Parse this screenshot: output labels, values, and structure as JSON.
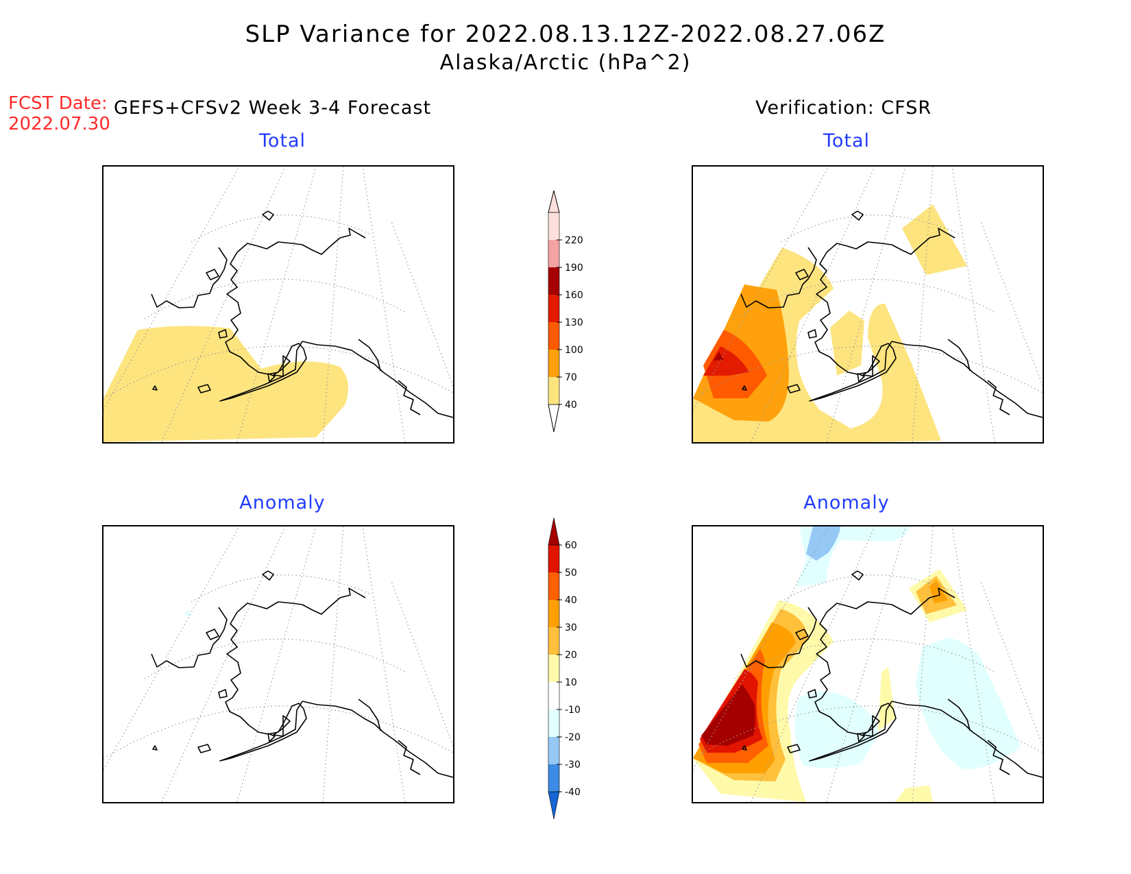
{
  "title": {
    "line1": "SLP Variance for 2022.08.13.12Z-2022.08.27.06Z",
    "line2": "Alaska/Arctic (hPa^2)"
  },
  "fcst_date": {
    "label": "FCST Date:",
    "value": "2022.07.30"
  },
  "left_header": "GEFS+CFSv2 Week 3-4 Forecast",
  "right_header": "Verification: CFSR",
  "panels": {
    "forecast_total": {
      "subtitle": "Total"
    },
    "verification_total": {
      "subtitle": "Total"
    },
    "forecast_anomaly": {
      "subtitle": "Anomaly"
    },
    "verification_anomaly": {
      "subtitle": "Anomaly"
    }
  },
  "colorbars": {
    "total": {
      "levels": [
        "40",
        "70",
        "100",
        "130",
        "160",
        "190",
        "220"
      ],
      "colors": [
        "#fde47f",
        "#ffa10c",
        "#ff5a00",
        "#e31b00",
        "#a60000",
        "#f4a3a3",
        "#fde0dc"
      ]
    },
    "anomaly": {
      "levels": [
        "-40",
        "-30",
        "-20",
        "-10",
        "10",
        "20",
        "30",
        "40",
        "50",
        "60"
      ],
      "colors": [
        "#1464d2",
        "#3c8ce6",
        "#96c8f5",
        "#e1ffff",
        "#ffffff",
        "#fffaaa",
        "#ffc03c",
        "#ffa000",
        "#ff6000",
        "#e11400",
        "#a50000"
      ]
    }
  },
  "map_colors": {
    "land_outline": "#000000",
    "graticule": "#999999"
  }
}
